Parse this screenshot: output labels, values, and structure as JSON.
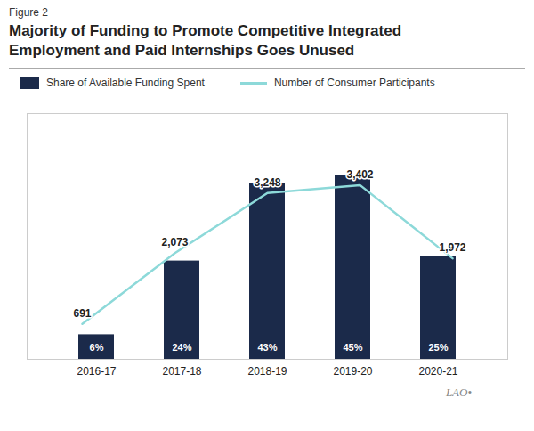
{
  "chart_data": {
    "type": "bar",
    "title": "Majority of Funding to Promote Competitive Integrated\nEmployment and Paid Internships Goes Unused",
    "annotations": [
      "Figure 2",
      "LAO•"
    ],
    "categories": [
      "2016-17",
      "2017-18",
      "2018-19",
      "2019-20",
      "2020-21"
    ],
    "series": [
      {
        "name": "Share of Available Funding Spent",
        "type": "bar",
        "color": "#1b2a4a",
        "values": [
          6,
          24,
          43,
          45,
          25
        ],
        "value_labels": [
          "6%",
          "24%",
          "43%",
          "45%",
          "25%"
        ]
      },
      {
        "name": "Number of Consumer Participants",
        "type": "line",
        "axis": "y2",
        "color": "#8dd9d9",
        "values": [
          691,
          2073,
          3248,
          3402,
          1972
        ],
        "value_labels": [
          "691",
          "2,073",
          "3,248",
          "3,402",
          "1,972"
        ]
      }
    ],
    "ylim": [
      0,
      60
    ],
    "y2lim": [
      0,
      4800
    ],
    "tick_labels": "x",
    "data_labels": true,
    "grid": false,
    "legend": "top"
  }
}
